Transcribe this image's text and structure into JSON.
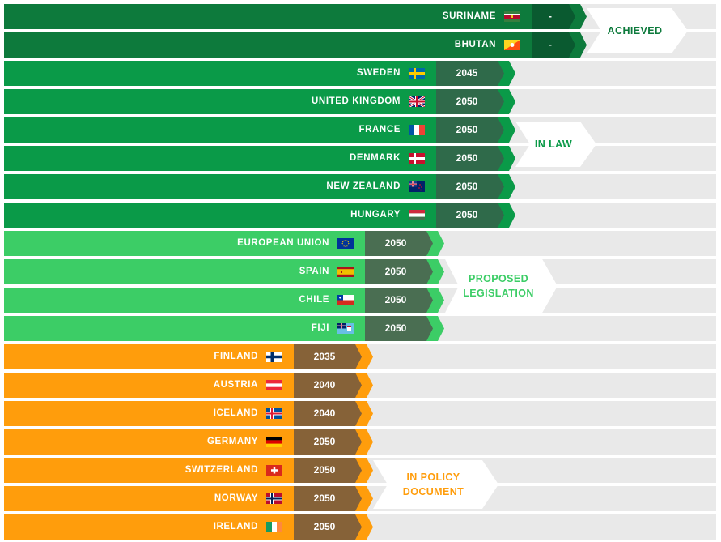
{
  "colors": {
    "background": "#e9e9e9",
    "separator": "#ffffff",
    "achieved_bar": "#0d7a3c",
    "achieved_box": "#0a5a30",
    "in_law_bar": "#0a9a48",
    "in_law_box": "#2f6a4a",
    "proposed_bar": "#3ccd66",
    "proposed_box": "#4a6e52",
    "policy_bar": "#ff9d0c",
    "policy_box": "#866238",
    "achieved_text": "#0d7a3c",
    "in_law_text": "#0a9a48",
    "proposed_text": "#3ccd66",
    "policy_text": "#ff9d0c"
  },
  "chart_data": {
    "type": "table",
    "groups": [
      {
        "label": "ACHIEVED",
        "key": "achieved",
        "countries": [
          {
            "name": "SURINAME",
            "year": "-",
            "flag": "suriname-flag"
          },
          {
            "name": "BHUTAN",
            "year": "-",
            "flag": "bhutan-flag"
          }
        ]
      },
      {
        "label": "IN LAW",
        "key": "in_law",
        "countries": [
          {
            "name": "SWEDEN",
            "year": "2045",
            "flag": "sweden-flag"
          },
          {
            "name": "UNITED KINGDOM",
            "year": "2050",
            "flag": "uk-flag"
          },
          {
            "name": "FRANCE",
            "year": "2050",
            "flag": "france-flag"
          },
          {
            "name": "DENMARK",
            "year": "2050",
            "flag": "denmark-flag"
          },
          {
            "name": "NEW ZEALAND",
            "year": "2050",
            "flag": "new-zealand-flag"
          },
          {
            "name": "HUNGARY",
            "year": "2050",
            "flag": "hungary-flag"
          }
        ]
      },
      {
        "label": "PROPOSED\nLEGISLATION",
        "key": "proposed",
        "countries": [
          {
            "name": "EUROPEAN UNION",
            "year": "2050",
            "flag": "eu-flag"
          },
          {
            "name": "SPAIN",
            "year": "2050",
            "flag": "spain-flag"
          },
          {
            "name": "CHILE",
            "year": "2050",
            "flag": "chile-flag"
          },
          {
            "name": "FIJI",
            "year": "2050",
            "flag": "fiji-flag"
          }
        ]
      },
      {
        "label": "IN POLICY\nDOCUMENT",
        "key": "policy",
        "countries": [
          {
            "name": "FINLAND",
            "year": "2035",
            "flag": "finland-flag"
          },
          {
            "name": "AUSTRIA",
            "year": "2040",
            "flag": "austria-flag"
          },
          {
            "name": "ICELAND",
            "year": "2040",
            "flag": "iceland-flag"
          },
          {
            "name": "GERMANY",
            "year": "2050",
            "flag": "germany-flag"
          },
          {
            "name": "SWITZERLAND",
            "year": "2050",
            "flag": "switzerland-flag"
          },
          {
            "name": "NORWAY",
            "year": "2050",
            "flag": "norway-flag"
          },
          {
            "name": "IRELAND",
            "year": "2050",
            "flag": "ireland-flag"
          }
        ]
      }
    ]
  }
}
